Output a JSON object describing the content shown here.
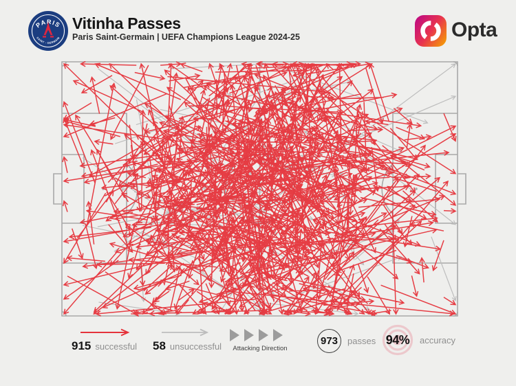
{
  "header": {
    "title": "Vitinha Passes",
    "subtitle": "Paris Saint-Germain | UEFA Champions League 2024-25",
    "badge": {
      "club": "Paris Saint-Germain",
      "arc_top": "PARIS",
      "arc_bottom": "SAINT - GERMAIN"
    },
    "brand_wordmark": "Opta"
  },
  "legend": {
    "successful": {
      "count": "915",
      "label": "successful"
    },
    "unsuccessful": {
      "count": "58",
      "label": "unsuccessful"
    },
    "attacking_direction_label": "Attacking Direction",
    "passes_badge": {
      "value": "973",
      "label": "passes"
    },
    "accuracy_badge": {
      "value": "94%",
      "label": "accuracy"
    }
  },
  "colors": {
    "bg": "#efefed",
    "ink": "#151515",
    "sub": "#2d2d2d",
    "dark": "#2b2b2b",
    "label": "#8f8f8f",
    "red": "#e5333b",
    "grey_pass": "#bdbdbd",
    "pitch": "#a8a8a8",
    "tri": "#9c9c9c",
    "pink": "#ecc8cc",
    "circle_border": "#3d3d3d",
    "psg_blue": "#1b3d80",
    "psg_red": "#dc2640",
    "opta_a": "#c00b80",
    "opta_m": "#e8344e",
    "opta_b": "#f59e03"
  },
  "chart_data": {
    "type": "scatter",
    "subtype": "football-pass-map-arrows",
    "title": "Vitinha Passes",
    "subtitle": "Paris Saint-Germain | UEFA Champions League 2024-25",
    "pitch": {
      "orientation": "landscape",
      "attacking_direction": "left-to-right"
    },
    "series": [
      {
        "name": "successful",
        "count": 915,
        "color": "#e5333b"
      },
      {
        "name": "unsuccessful",
        "count": 58,
        "color": "#bdbdbd"
      }
    ],
    "stats": {
      "passes": 973,
      "accuracy_pct": 94
    },
    "legend_position": "bottom",
    "generator": {
      "seed": 11,
      "pitch_bounds": [
        90,
        90,
        665,
        460
      ],
      "successful": {
        "count": 915,
        "origin_mean": [
          378,
          272
        ],
        "origin_sd": [
          112,
          90
        ],
        "len_base": 26,
        "len_scale": 58,
        "long_chance": 0.08,
        "long_extra": 90,
        "head": 7.5
      },
      "unsuccessful": {
        "count": 58,
        "long_ratio": 0.6,
        "long_origin_mean": [
          290,
          265
        ],
        "long_origin_sd": [
          105,
          95
        ],
        "long_len_base": 120,
        "long_len_scale": 70,
        "long_spread": 1.4,
        "short_origin_mean": [
          370,
          270
        ],
        "short_origin_sd": [
          110,
          90
        ],
        "short_len_base": 30,
        "short_len_scale": 55,
        "head": 6.5
      }
    }
  }
}
